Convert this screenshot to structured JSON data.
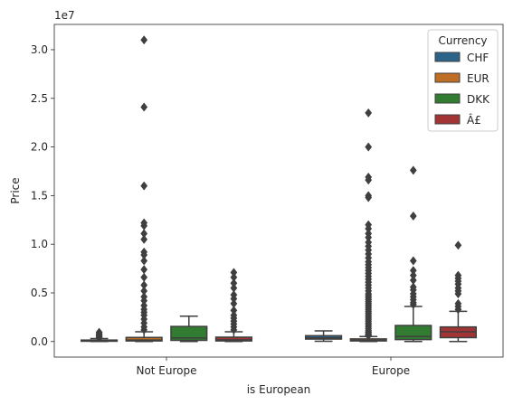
{
  "chart_data": {
    "type": "box",
    "xlabel": "is European",
    "ylabel": "Price",
    "y_offset_label": "1e7",
    "y_scale": 10000000,
    "ylim": [
      -1600000,
      32600000
    ],
    "y_ticks": [
      0,
      5000000,
      10000000,
      15000000,
      20000000,
      25000000,
      30000000
    ],
    "y_tick_labels": [
      "0.0",
      "0.5",
      "1.0",
      "1.5",
      "2.0",
      "2.5",
      "3.0"
    ],
    "categories": [
      "Not Europe",
      "Europe"
    ],
    "legend": {
      "title": "Currency",
      "placement": "top-right"
    },
    "series": [
      {
        "name": "CHF",
        "color": "#3274a1",
        "boxes": [
          {
            "q1": 30000,
            "median": 80000,
            "q3": 150000,
            "whisker_low": 0,
            "whisker_high": 300000,
            "outliers": [
              400000,
              500000,
              600000,
              700000,
              800000,
              950000
            ]
          },
          {
            "q1": 250000,
            "median": 380000,
            "q3": 600000,
            "whisker_low": 30000,
            "whisker_high": 1100000,
            "outliers": []
          }
        ]
      },
      {
        "name": "EUR",
        "color": "#e1812c",
        "boxes": [
          {
            "q1": 60000,
            "median": 150000,
            "q3": 420000,
            "whisker_low": 0,
            "whisker_high": 1000000,
            "outliers": [
              1200000,
              1500000,
              1900000,
              2300000,
              2700000,
              3000000,
              3300000,
              3700000,
              4200000,
              4600000,
              5200000,
              5800000,
              6600000,
              7400000,
              8300000,
              8900000,
              9200000,
              10500000,
              11100000,
              11900000,
              12200000,
              16000000,
              24100000,
              31000000
            ]
          },
          {
            "q1": 60000,
            "median": 130000,
            "q3": 270000,
            "whisker_low": 0,
            "whisker_high": 520000,
            "outliers": [
              600000,
              700000,
              800000,
              950000,
              1100000,
              1300000,
              1500000,
              1700000,
              1900000,
              2100000,
              2300000,
              2500000,
              2700000,
              2900000,
              3100000,
              3300000,
              3500000,
              3700000,
              3900000,
              4100000,
              4300000,
              4500000,
              4700000,
              4900000,
              5200000,
              5500000,
              5800000,
              6100000,
              6400000,
              6700000,
              7000000,
              7300000,
              7600000,
              7900000,
              8200000,
              8600000,
              9000000,
              9400000,
              9800000,
              10200000,
              10700000,
              11100000,
              11600000,
              12000000,
              14800000,
              15000000,
              16600000,
              16900000,
              20000000,
              23500000
            ]
          }
        ]
      },
      {
        "name": "DKK",
        "color": "#3a923a",
        "boxes": [
          {
            "q1": 120000,
            "median": 360000,
            "q3": 1550000,
            "whisker_low": 0,
            "whisker_high": 2600000,
            "outliers": []
          },
          {
            "q1": 200000,
            "median": 520000,
            "q3": 1650000,
            "whisker_low": 0,
            "whisker_high": 3600000,
            "outliers": [
              3800000,
              4000000,
              4300000,
              4600000,
              4900000,
              5300000,
              5600000,
              6300000,
              6800000,
              7300000,
              8300000,
              12900000,
              17600000
            ]
          }
        ]
      },
      {
        "name": "Â£",
        "color": "#c03d3e",
        "boxes": [
          {
            "q1": 60000,
            "median": 180000,
            "q3": 450000,
            "whisker_low": 0,
            "whisker_high": 1000000,
            "outliers": [
              1200000,
              1500000,
              1800000,
              2100000,
              2400000,
              2700000,
              3200000,
              3900000,
              4400000,
              4800000,
              5500000,
              6000000,
              6600000,
              7100000
            ]
          },
          {
            "q1": 400000,
            "median": 1000000,
            "q3": 1500000,
            "whisker_low": 0,
            "whisker_high": 3100000,
            "outliers": [
              3300000,
              3600000,
              3900000,
              4900000,
              5200000,
              5500000,
              5900000,
              6200000,
              6500000,
              6800000,
              9900000
            ]
          }
        ]
      }
    ]
  }
}
